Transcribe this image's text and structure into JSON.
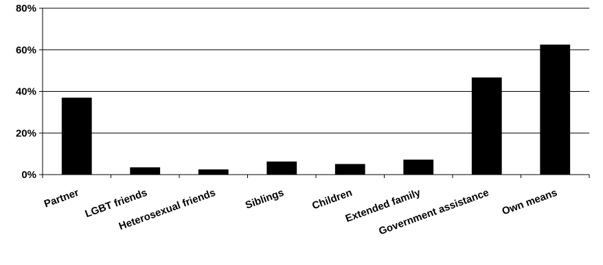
{
  "chart_data": {
    "type": "bar",
    "title": "",
    "xlabel": "",
    "ylabel": "",
    "categories": [
      "Partner",
      "LGBT friends",
      "Heterosexual friends",
      "Siblings",
      "Children",
      "Extended family",
      "Government assistance",
      "Own means"
    ],
    "values": [
      37,
      3.5,
      2.5,
      6.3,
      5.1,
      7.2,
      46.7,
      62.5
    ],
    "ylim": [
      0,
      80
    ],
    "yticks": [
      0,
      20,
      40,
      60,
      80
    ],
    "ytick_labels": [
      "0%",
      "20%",
      "40%",
      "60%",
      "80%"
    ],
    "grid": true,
    "legend": "none",
    "bar_color": "#000000",
    "gridline_color": "#000000"
  }
}
